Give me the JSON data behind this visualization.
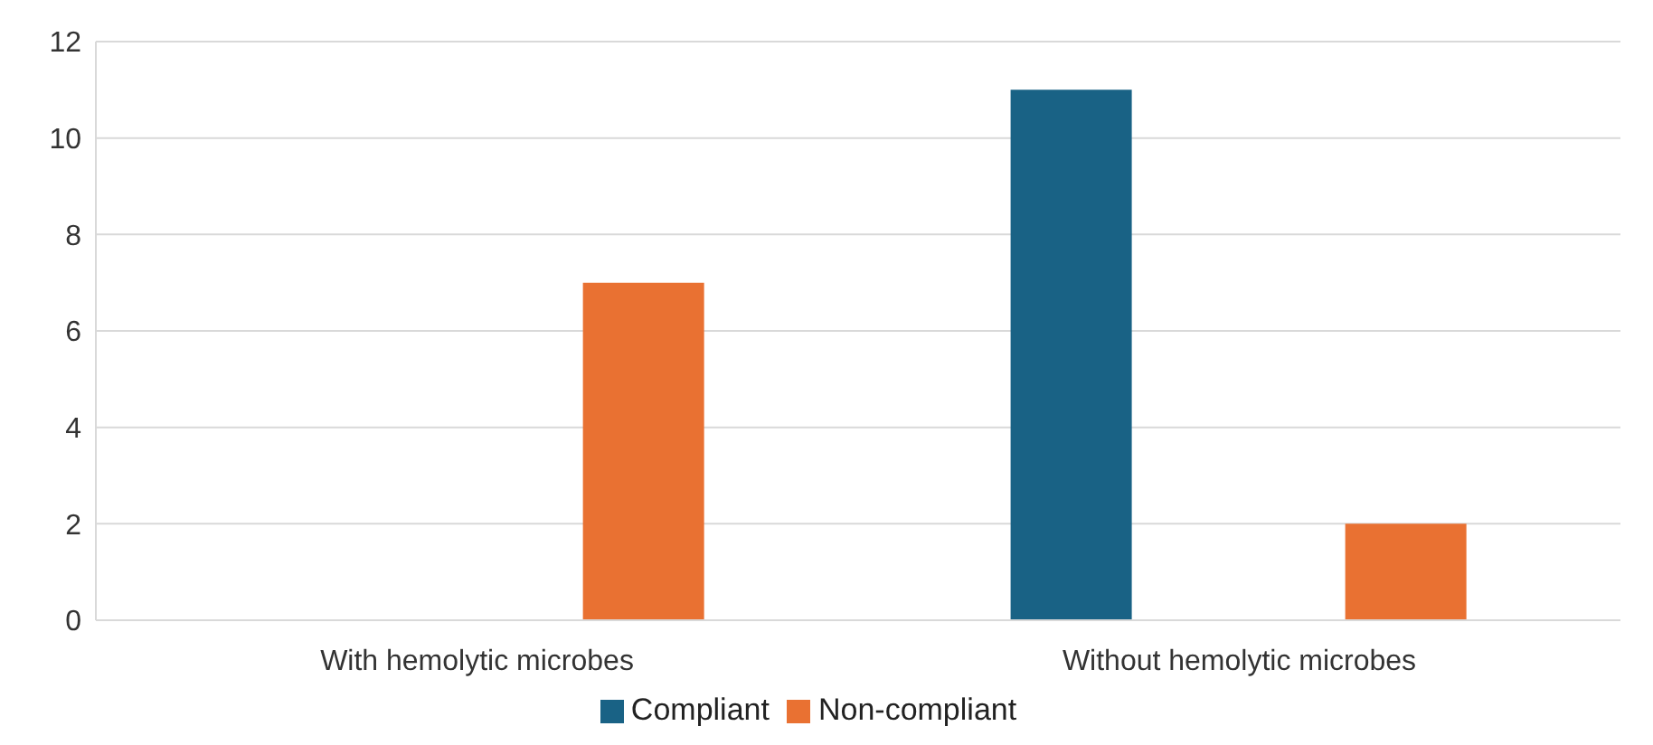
{
  "chart_data": {
    "type": "bar",
    "categories": [
      "With hemolytic microbes",
      "Without hemolytic microbes"
    ],
    "series": [
      {
        "name": "Compliant",
        "color": "#196285",
        "values": [
          0,
          11
        ]
      },
      {
        "name": "Non-compliant",
        "color": "#e97132",
        "values": [
          7,
          2
        ]
      }
    ],
    "ylim": [
      0,
      12
    ],
    "yticks": [
      0,
      2,
      4,
      6,
      8,
      10,
      12
    ],
    "grid": "y",
    "legend": "bottom"
  }
}
